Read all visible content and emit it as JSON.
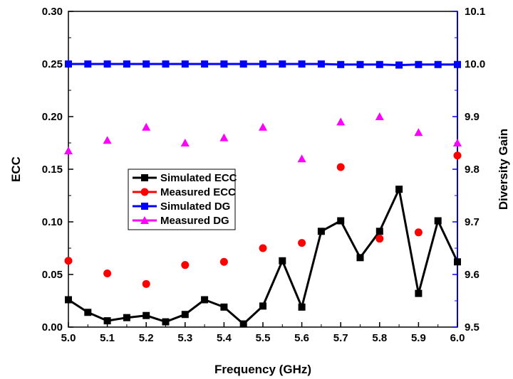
{
  "chart_data": {
    "type": "line",
    "xlabel": "Frequency (GHz)",
    "ylabel_left": "ECC",
    "ylabel_right": "Diversity Gain",
    "xlim": [
      5.0,
      6.0
    ],
    "ylim_left": [
      0.0,
      0.3
    ],
    "ylim_right": [
      9.5,
      10.1
    ],
    "x_ticks": [
      "5.0",
      "5.1",
      "5.2",
      "5.3",
      "5.4",
      "5.5",
      "5.6",
      "5.7",
      "5.8",
      "5.9",
      "6.0"
    ],
    "y_left_ticks": [
      "0.00",
      "0.05",
      "0.10",
      "0.15",
      "0.20",
      "0.25",
      "0.30"
    ],
    "y_right_ticks": [
      "9.5",
      "9.6",
      "9.7",
      "9.8",
      "9.9",
      "10.0",
      "10.1"
    ],
    "legend_position": "center-left",
    "grid": false,
    "colors": {
      "left_axis": "#000000",
      "right_axis": "#0000ff",
      "simulated_ecc": "#000000",
      "measured_ecc": "#ff0000",
      "simulated_dg": "#0000ff",
      "measured_dg": "#ff00ff"
    },
    "series": [
      {
        "name": "Simulated ECC",
        "axis": "left",
        "style": "line-square",
        "x": [
          5.0,
          5.05,
          5.1,
          5.15,
          5.2,
          5.25,
          5.3,
          5.35,
          5.4,
          5.45,
          5.5,
          5.55,
          5.6,
          5.65,
          5.7,
          5.75,
          5.8,
          5.85,
          5.9,
          5.95,
          6.0
        ],
        "values": [
          0.026,
          0.014,
          0.006,
          0.009,
          0.011,
          0.005,
          0.012,
          0.026,
          0.019,
          0.003,
          0.02,
          0.063,
          0.019,
          0.091,
          0.101,
          0.066,
          0.091,
          0.131,
          0.032,
          0.101,
          0.062
        ]
      },
      {
        "name": "Measured ECC",
        "axis": "left",
        "style": "circle",
        "x": [
          5.0,
          5.1,
          5.2,
          5.3,
          5.4,
          5.5,
          5.6,
          5.7,
          5.8,
          5.9,
          6.0
        ],
        "values": [
          0.063,
          0.051,
          0.041,
          0.059,
          0.062,
          0.075,
          0.08,
          0.152,
          0.084,
          0.09,
          0.163
        ]
      },
      {
        "name": "Simulated DG",
        "axis": "right",
        "style": "line-square",
        "x": [
          5.0,
          5.05,
          5.1,
          5.15,
          5.2,
          5.25,
          5.3,
          5.35,
          5.4,
          5.45,
          5.5,
          5.55,
          5.6,
          5.65,
          5.7,
          5.75,
          5.8,
          5.85,
          5.9,
          5.95,
          6.0
        ],
        "values": [
          10.0,
          10.0,
          10.0,
          10.0,
          10.0,
          10.0,
          10.0,
          10.0,
          10.0,
          10.0,
          10.0,
          10.0,
          10.0,
          10.0,
          9.999,
          9.999,
          9.999,
          9.998,
          9.999,
          9.999,
          9.999
        ]
      },
      {
        "name": "Measured DG",
        "axis": "right",
        "style": "triangle",
        "x": [
          5.0,
          5.1,
          5.2,
          5.3,
          5.4,
          5.5,
          5.6,
          5.7,
          5.8,
          5.9,
          6.0
        ],
        "values": [
          9.835,
          9.855,
          9.88,
          9.85,
          9.86,
          9.88,
          9.82,
          9.89,
          9.9,
          9.87,
          9.85
        ]
      }
    ]
  }
}
